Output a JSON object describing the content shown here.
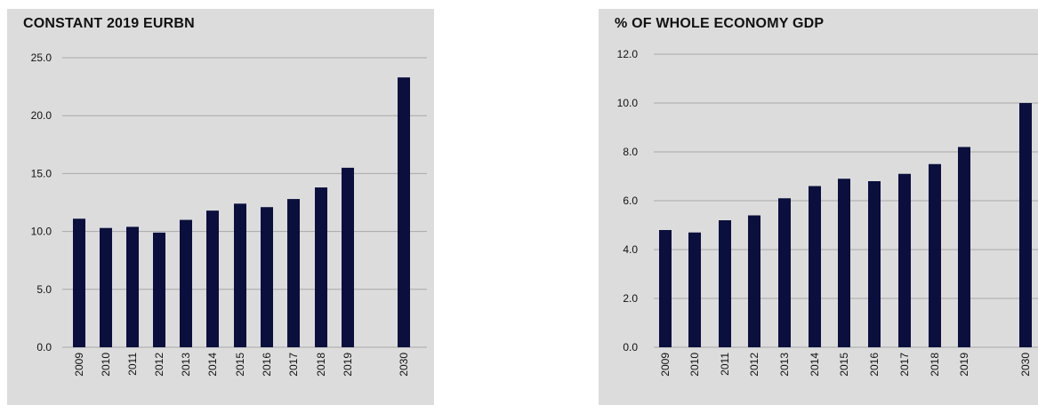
{
  "colors": {
    "bar": "#0b0f3d",
    "grid": "#a8a8a8",
    "background": "#dcdcdc",
    "text": "#111111"
  },
  "chart_data": [
    {
      "type": "bar",
      "title": "CONSTANT 2019 EURBN",
      "categories": [
        "2009",
        "2010",
        "2011",
        "2012",
        "2013",
        "2014",
        "2015",
        "2016",
        "2017",
        "2018",
        "2019",
        "2030"
      ],
      "values": [
        11.1,
        10.3,
        10.4,
        9.9,
        11.0,
        11.8,
        12.4,
        12.1,
        12.8,
        13.8,
        15.5,
        23.3
      ],
      "ylim": [
        0,
        25
      ],
      "yticks": [
        "0.0",
        "5.0",
        "10.0",
        "15.0",
        "20.0",
        "25.0"
      ],
      "grid": true
    },
    {
      "type": "bar",
      "title": "% OF WHOLE ECONOMY GDP",
      "categories": [
        "2009",
        "2010",
        "2011",
        "2012",
        "2013",
        "2014",
        "2015",
        "2016",
        "2017",
        "2018",
        "2019",
        "2030"
      ],
      "values": [
        4.8,
        4.7,
        5.2,
        5.4,
        6.1,
        6.6,
        6.9,
        6.8,
        7.1,
        7.5,
        8.2,
        10.0
      ],
      "ylim": [
        0,
        12
      ],
      "yticks": [
        "0.0",
        "2.0",
        "4.0",
        "6.0",
        "8.0",
        "10.0",
        "12.0"
      ],
      "grid": true
    }
  ]
}
